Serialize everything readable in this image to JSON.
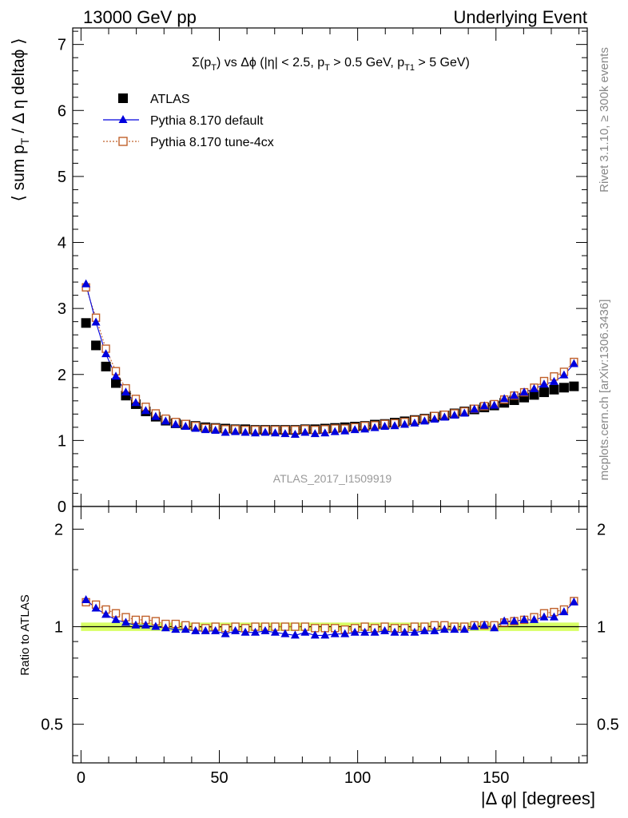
{
  "header": {
    "left": "13000 GeV pp",
    "right": "Underlying Event"
  },
  "side_labels": {
    "rivet": "Rivet 3.1.10, ≥ 300k events",
    "mcplots": "mcplots.cern.ch [arXiv:1306.3436]"
  },
  "watermark": "ATLAS_2017_I1509919",
  "colors": {
    "atlas": "#000000",
    "default": "#0000dd",
    "tune": "#c0602a",
    "band": "#d8ff66"
  },
  "chart_data": [
    {
      "type": "scatter",
      "panel": "main",
      "title": "Σ(pT) vs Δφ (|η| < 2.5, pT > 0.5 GeV, pT1 > 5 GeV)",
      "ylabel": "⟨ sum pT / Δ η deltaφ ⟩",
      "xlim": [
        -3,
        183
      ],
      "ylim": [
        0,
        7.25
      ],
      "yticks": [
        0,
        1,
        2,
        3,
        4,
        5,
        6,
        7
      ],
      "x": [
        1.8,
        5.4,
        9,
        12.6,
        16.2,
        19.8,
        23.4,
        27,
        30.6,
        34.2,
        37.8,
        41.4,
        45,
        48.6,
        52.2,
        55.8,
        59.4,
        63,
        66.6,
        70.2,
        73.8,
        77.4,
        81,
        84.6,
        88.2,
        91.8,
        95.4,
        99,
        102.6,
        106.2,
        109.8,
        113.4,
        117,
        120.6,
        124.2,
        127.8,
        131.4,
        135,
        138.6,
        142.2,
        145.8,
        149.4,
        153,
        156.6,
        160.2,
        163.8,
        167.4,
        171,
        174.6,
        178.2
      ],
      "legend": [
        "ATLAS",
        "Pythia 8.170 default",
        "Pythia 8.170 tune-4cx"
      ],
      "series": [
        {
          "name": "ATLAS",
          "values": [
            2.78,
            2.44,
            2.12,
            1.87,
            1.68,
            1.55,
            1.44,
            1.36,
            1.3,
            1.26,
            1.24,
            1.22,
            1.2,
            1.19,
            1.18,
            1.17,
            1.17,
            1.16,
            1.16,
            1.16,
            1.16,
            1.16,
            1.17,
            1.17,
            1.18,
            1.19,
            1.2,
            1.21,
            1.22,
            1.24,
            1.25,
            1.27,
            1.29,
            1.31,
            1.33,
            1.36,
            1.38,
            1.41,
            1.44,
            1.47,
            1.5,
            1.53,
            1.57,
            1.61,
            1.65,
            1.69,
            1.73,
            1.77,
            1.8,
            1.82
          ]
        },
        {
          "name": "Pythia 8.170 default",
          "values": [
            3.37,
            2.79,
            2.31,
            1.97,
            1.73,
            1.57,
            1.45,
            1.36,
            1.29,
            1.24,
            1.21,
            1.18,
            1.16,
            1.15,
            1.12,
            1.13,
            1.12,
            1.11,
            1.12,
            1.11,
            1.1,
            1.09,
            1.12,
            1.1,
            1.11,
            1.13,
            1.14,
            1.16,
            1.17,
            1.19,
            1.21,
            1.22,
            1.24,
            1.26,
            1.29,
            1.32,
            1.35,
            1.38,
            1.41,
            1.47,
            1.52,
            1.53,
            1.63,
            1.68,
            1.73,
            1.78,
            1.85,
            1.89,
            1.99,
            2.16
          ]
        },
        {
          "name": "Pythia 8.170 tune-4cx",
          "values": [
            3.32,
            2.86,
            2.39,
            2.05,
            1.79,
            1.63,
            1.51,
            1.41,
            1.33,
            1.28,
            1.25,
            1.22,
            1.19,
            1.19,
            1.17,
            1.17,
            1.16,
            1.16,
            1.16,
            1.16,
            1.16,
            1.16,
            1.17,
            1.16,
            1.17,
            1.18,
            1.18,
            1.2,
            1.22,
            1.23,
            1.25,
            1.26,
            1.28,
            1.31,
            1.33,
            1.37,
            1.39,
            1.41,
            1.44,
            1.48,
            1.52,
            1.55,
            1.62,
            1.68,
            1.73,
            1.8,
            1.9,
            1.97,
            2.04,
            2.19
          ]
        }
      ]
    },
    {
      "type": "scatter",
      "panel": "ratio",
      "ylabel": "Ratio to ATLAS",
      "xlabel": "|Δ φ| [degrees]",
      "xlim": [
        -3,
        183
      ],
      "ylim": [
        0.38,
        2.35
      ],
      "ylog": true,
      "yticks": [
        0.5,
        1,
        2
      ],
      "xticks": [
        0,
        50,
        100,
        150
      ],
      "band": [
        0.97,
        1.03
      ],
      "series": [
        {
          "name": "Pythia 8.170 default",
          "values": [
            1.21,
            1.14,
            1.09,
            1.05,
            1.03,
            1.01,
            1.01,
            1.0,
            0.99,
            0.98,
            0.98,
            0.97,
            0.97,
            0.97,
            0.95,
            0.97,
            0.96,
            0.96,
            0.97,
            0.96,
            0.95,
            0.94,
            0.96,
            0.94,
            0.94,
            0.95,
            0.95,
            0.96,
            0.96,
            0.96,
            0.97,
            0.96,
            0.96,
            0.96,
            0.97,
            0.97,
            0.98,
            0.98,
            0.98,
            1.0,
            1.01,
            0.99,
            1.04,
            1.04,
            1.05,
            1.05,
            1.07,
            1.07,
            1.11,
            1.19
          ]
        },
        {
          "name": "Pythia 8.170 tune-4cx",
          "values": [
            1.19,
            1.17,
            1.13,
            1.1,
            1.07,
            1.05,
            1.05,
            1.04,
            1.02,
            1.02,
            1.01,
            1.0,
            0.99,
            1.0,
            0.99,
            1.0,
            0.99,
            1.0,
            1.0,
            1.0,
            1.0,
            1.0,
            1.0,
            0.99,
            0.99,
            0.99,
            0.98,
            0.99,
            1.0,
            0.99,
            1.0,
            0.99,
            0.99,
            1.0,
            1.0,
            1.01,
            1.01,
            1.0,
            1.0,
            1.01,
            1.01,
            1.01,
            1.03,
            1.04,
            1.05,
            1.07,
            1.1,
            1.11,
            1.13,
            1.2
          ]
        }
      ]
    }
  ]
}
